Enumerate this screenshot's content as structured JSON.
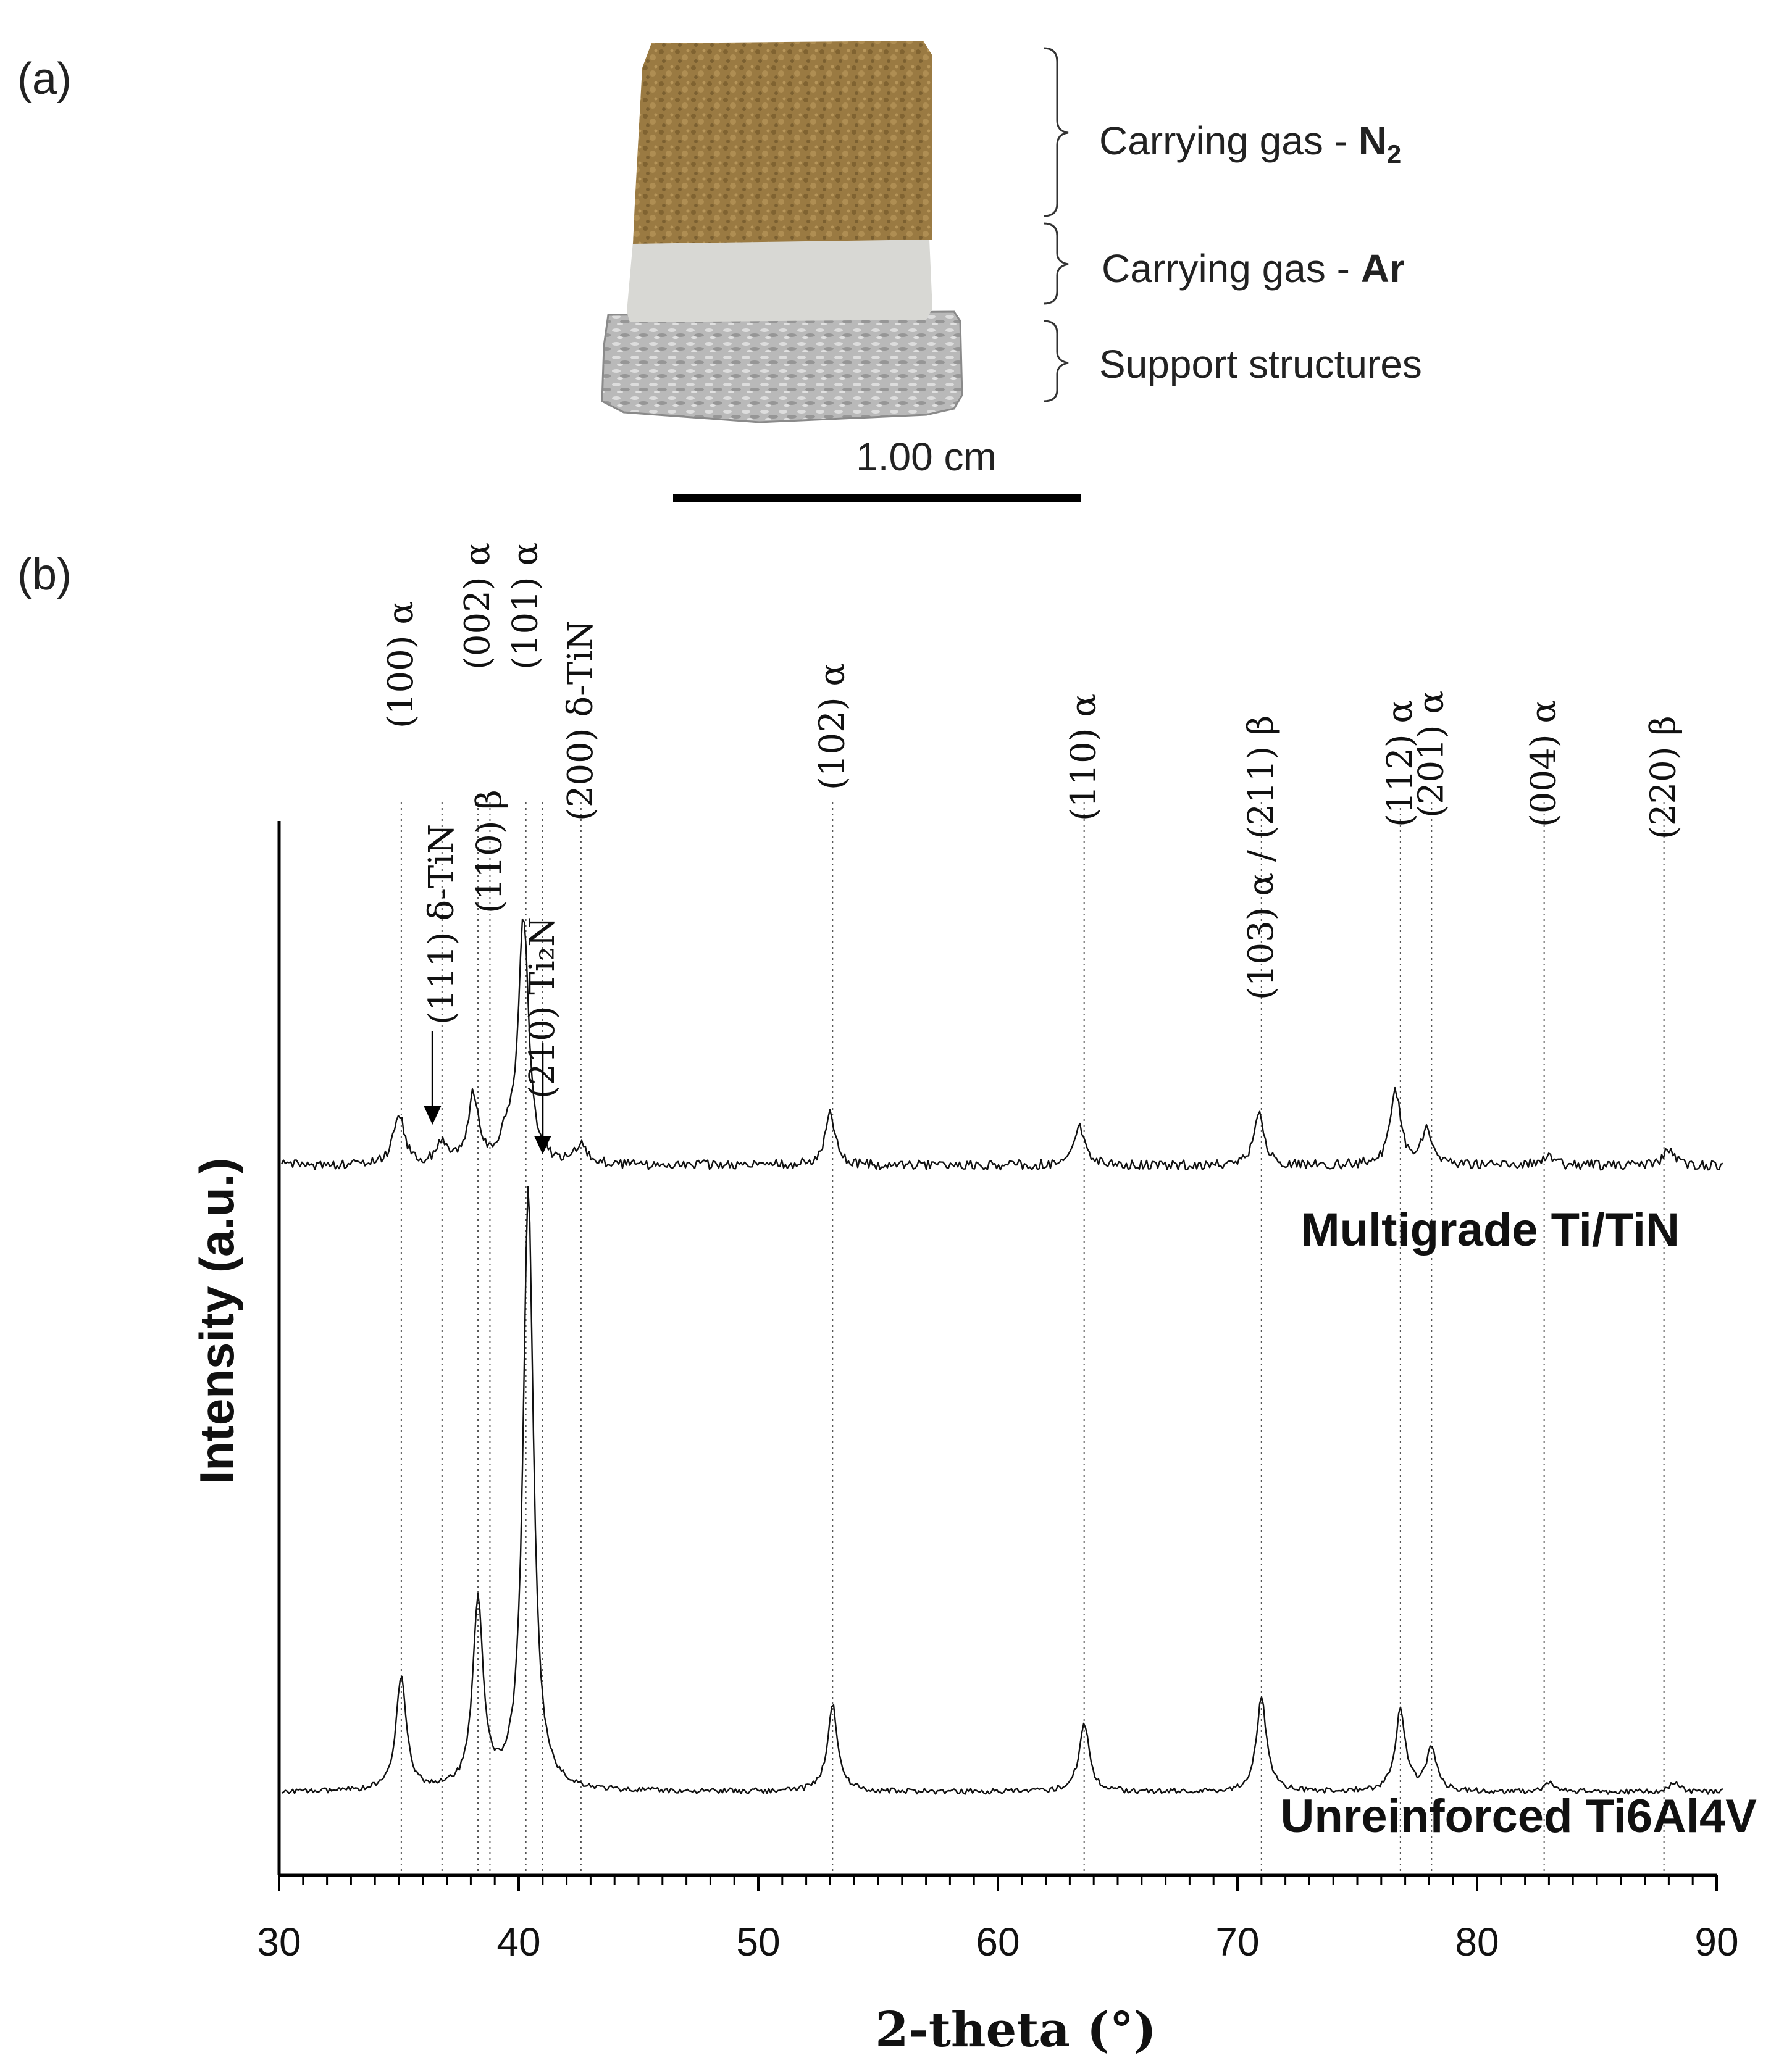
{
  "panel_a": {
    "label": "(a)",
    "annotations": {
      "n2_prefix": "Carrying gas - ",
      "n2_gas": "N",
      "n2_sub": "2",
      "ar_prefix": "Carrying gas - ",
      "ar_gas": "Ar",
      "support": "Support structures"
    },
    "scale_bar_label": "1.00 cm",
    "colors": {
      "n2_layer": "#9a7a42",
      "ar_layer": "#d8d8d4",
      "support_layer": "#b9b9b9"
    }
  },
  "panel_b": {
    "label": "(b)"
  },
  "chart_data": {
    "type": "line",
    "xlabel": "2-theta (°)",
    "ylabel": "Intensity (a.u.)",
    "xlim": [
      30,
      90
    ],
    "xticks": [
      "30",
      "40",
      "50",
      "60",
      "70",
      "80",
      "90"
    ],
    "series": [
      {
        "name": "Multigrade Ti/TiN",
        "peaks": [
          {
            "x": 35.0,
            "h": 0.17
          },
          {
            "x": 36.8,
            "h": 0.07
          },
          {
            "x": 38.1,
            "h": 0.22
          },
          {
            "x": 39.5,
            "h": 0.08
          },
          {
            "x": 40.2,
            "h": 0.8
          },
          {
            "x": 42.6,
            "h": 0.07
          },
          {
            "x": 53.0,
            "h": 0.17
          },
          {
            "x": 63.4,
            "h": 0.13
          },
          {
            "x": 70.9,
            "h": 0.16
          },
          {
            "x": 76.6,
            "h": 0.24
          },
          {
            "x": 77.9,
            "h": 0.12
          },
          {
            "x": 82.9,
            "h": 0.03
          },
          {
            "x": 88.0,
            "h": 0.05
          }
        ]
      },
      {
        "name": "Unreinforced Ti6Al4V",
        "peaks": [
          {
            "x": 35.1,
            "h": 0.37
          },
          {
            "x": 38.3,
            "h": 0.61
          },
          {
            "x": 40.4,
            "h": 1.95
          },
          {
            "x": 53.1,
            "h": 0.28
          },
          {
            "x": 63.6,
            "h": 0.22
          },
          {
            "x": 71.0,
            "h": 0.3
          },
          {
            "x": 76.8,
            "h": 0.26
          },
          {
            "x": 78.1,
            "h": 0.14
          },
          {
            "x": 83.0,
            "h": 0.03
          },
          {
            "x": 88.2,
            "h": 0.03
          }
        ]
      }
    ],
    "reference_lines": [
      {
        "x": 35.1,
        "label": "(100) α"
      },
      {
        "x": 36.8,
        "label": "(111) δ-TiN"
      },
      {
        "x": 38.3,
        "label": "(002) α"
      },
      {
        "x": 38.8,
        "label": "(110) β"
      },
      {
        "x": 40.3,
        "label": "(101) α"
      },
      {
        "x": 41.0,
        "label": "(210) Ti₂N"
      },
      {
        "x": 42.6,
        "label": "(200) δ-TiN"
      },
      {
        "x": 53.1,
        "label": "(102) α"
      },
      {
        "x": 63.6,
        "label": "(110) α"
      },
      {
        "x": 71.0,
        "label": "(103) α / (211) β"
      },
      {
        "x": 76.8,
        "label": "(112) α"
      },
      {
        "x": 78.1,
        "label": "(201) α"
      },
      {
        "x": 82.8,
        "label": "(004) α"
      },
      {
        "x": 87.8,
        "label": "(220) β"
      }
    ],
    "grid": false
  }
}
